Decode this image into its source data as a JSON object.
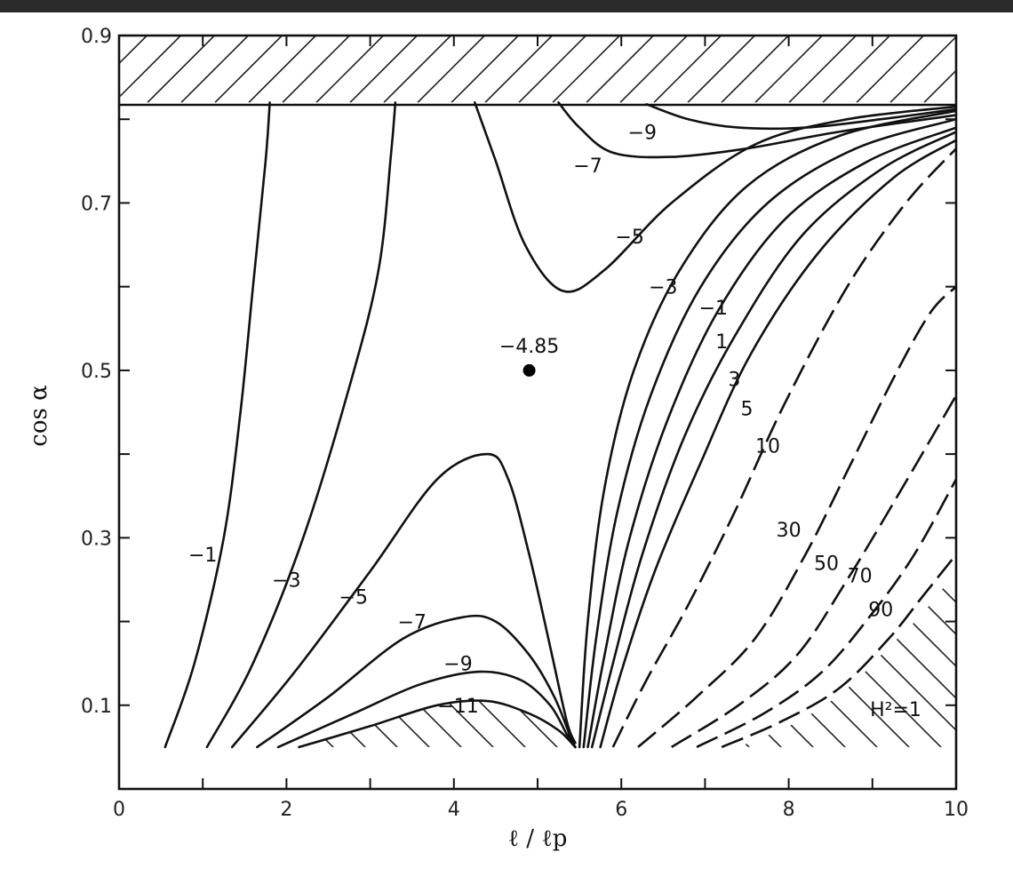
{
  "chart_data": {
    "type": "contour",
    "xlabel": "ℓ / ℓp",
    "ylabel": "cos α",
    "xlim": [
      0,
      10
    ],
    "ylim": [
      0,
      0.9
    ],
    "x_ticks": [
      "0",
      "2",
      "4",
      "6",
      "8",
      "10"
    ],
    "y_ticks": [
      "0.1",
      "0.3",
      "0.5",
      "0.7",
      "0.9"
    ],
    "point": {
      "label": "−4.85",
      "x": 4.9,
      "y": 0.5
    },
    "excluded_region_top": {
      "y_from": 0.82,
      "y_to": 0.9
    },
    "excluded_region_label": "H²=1",
    "contour_labels": [
      {
        "text": "−1",
        "x": 1.0,
        "y": 0.28
      },
      {
        "text": "−3",
        "x": 2.0,
        "y": 0.25
      },
      {
        "text": "−5",
        "x": 2.8,
        "y": 0.23
      },
      {
        "text": "−7",
        "x": 3.5,
        "y": 0.2
      },
      {
        "text": "−9",
        "x": 4.05,
        "y": 0.15
      },
      {
        "text": "−11",
        "x": 4.05,
        "y": 0.1
      },
      {
        "text": "−9",
        "x": 6.25,
        "y": 0.785
      },
      {
        "text": "−7",
        "x": 5.6,
        "y": 0.745
      },
      {
        "text": "−5",
        "x": 6.1,
        "y": 0.66
      },
      {
        "text": "−3",
        "x": 6.5,
        "y": 0.6
      },
      {
        "text": "−1",
        "x": 7.1,
        "y": 0.575
      },
      {
        "text": "1",
        "x": 7.2,
        "y": 0.535
      },
      {
        "text": "3",
        "x": 7.35,
        "y": 0.49
      },
      {
        "text": "5",
        "x": 7.5,
        "y": 0.455
      },
      {
        "text": "10",
        "x": 7.75,
        "y": 0.41
      },
      {
        "text": "30",
        "x": 8.0,
        "y": 0.31
      },
      {
        "text": "50",
        "x": 8.45,
        "y": 0.27
      },
      {
        "text": "70",
        "x": 8.85,
        "y": 0.255
      },
      {
        "text": "90",
        "x": 9.1,
        "y": 0.215
      }
    ],
    "contours": [
      {
        "level": -1,
        "style": "solid",
        "points": [
          [
            0.55,
            0.05
          ],
          [
            0.9,
            0.15
          ],
          [
            1.25,
            0.3
          ],
          [
            1.45,
            0.45
          ],
          [
            1.6,
            0.6
          ],
          [
            1.75,
            0.75
          ],
          [
            1.8,
            0.82
          ]
        ]
      },
      {
        "level": -3,
        "style": "solid",
        "points": [
          [
            1.05,
            0.05
          ],
          [
            1.6,
            0.15
          ],
          [
            2.2,
            0.3
          ],
          [
            2.75,
            0.48
          ],
          [
            3.1,
            0.62
          ],
          [
            3.25,
            0.76
          ],
          [
            3.3,
            0.82
          ]
        ]
      },
      {
        "level": -5,
        "style": "solid",
        "points": [
          [
            1.35,
            0.05
          ],
          [
            2.1,
            0.14
          ],
          [
            3.0,
            0.26
          ],
          [
            3.8,
            0.37
          ],
          [
            4.4,
            0.4
          ],
          [
            4.65,
            0.37
          ],
          [
            4.9,
            0.28
          ],
          [
            5.15,
            0.17
          ],
          [
            5.35,
            0.08
          ],
          [
            5.45,
            0.055
          ]
        ]
      },
      {
        "level": -7,
        "style": "solid",
        "points": [
          [
            1.65,
            0.05
          ],
          [
            2.5,
            0.11
          ],
          [
            3.4,
            0.18
          ],
          [
            4.1,
            0.205
          ],
          [
            4.5,
            0.2
          ],
          [
            4.9,
            0.16
          ],
          [
            5.2,
            0.11
          ],
          [
            5.4,
            0.06
          ],
          [
            5.45,
            0.05
          ]
        ]
      },
      {
        "level": -9,
        "style": "solid",
        "points": [
          [
            1.9,
            0.05
          ],
          [
            2.8,
            0.09
          ],
          [
            3.6,
            0.125
          ],
          [
            4.3,
            0.14
          ],
          [
            4.8,
            0.13
          ],
          [
            5.15,
            0.1
          ],
          [
            5.35,
            0.065
          ],
          [
            5.45,
            0.05
          ]
        ]
      },
      {
        "level": -11,
        "style": "solid",
        "points": [
          [
            2.15,
            0.05
          ],
          [
            3.0,
            0.075
          ],
          [
            3.8,
            0.1
          ],
          [
            4.4,
            0.105
          ],
          [
            4.9,
            0.09
          ],
          [
            5.25,
            0.07
          ],
          [
            5.45,
            0.05
          ]
        ]
      },
      {
        "level": -5,
        "style": "solid",
        "points": [
          [
            4.25,
            0.82
          ],
          [
            4.5,
            0.75
          ],
          [
            4.85,
            0.65
          ],
          [
            5.3,
            0.595
          ],
          [
            5.8,
            0.62
          ],
          [
            6.6,
            0.7
          ],
          [
            7.6,
            0.77
          ],
          [
            8.7,
            0.8
          ],
          [
            10,
            0.815
          ]
        ]
      },
      {
        "level": -7,
        "style": "solid",
        "points": [
          [
            5.25,
            0.82
          ],
          [
            5.5,
            0.79
          ],
          [
            5.9,
            0.76
          ],
          [
            6.6,
            0.755
          ],
          [
            7.5,
            0.765
          ],
          [
            8.6,
            0.785
          ],
          [
            10,
            0.805
          ]
        ]
      },
      {
        "level": -9,
        "style": "solid",
        "points": [
          [
            6.3,
            0.818
          ],
          [
            6.8,
            0.8
          ],
          [
            7.4,
            0.79
          ],
          [
            8.2,
            0.79
          ],
          [
            9.1,
            0.8
          ],
          [
            10,
            0.812
          ]
        ]
      },
      {
        "level": -3,
        "style": "solid",
        "points": [
          [
            5.5,
            0.05
          ],
          [
            5.6,
            0.2
          ],
          [
            5.8,
            0.36
          ],
          [
            6.15,
            0.5
          ],
          [
            6.7,
            0.62
          ],
          [
            7.5,
            0.72
          ],
          [
            8.6,
            0.78
          ],
          [
            10,
            0.81
          ]
        ]
      },
      {
        "level": -1,
        "style": "solid",
        "points": [
          [
            5.55,
            0.05
          ],
          [
            5.7,
            0.18
          ],
          [
            5.95,
            0.33
          ],
          [
            6.35,
            0.47
          ],
          [
            6.95,
            0.6
          ],
          [
            7.75,
            0.7
          ],
          [
            8.8,
            0.765
          ],
          [
            10,
            0.8
          ]
        ]
      },
      {
        "level": 1,
        "style": "solid",
        "points": [
          [
            5.6,
            0.05
          ],
          [
            5.8,
            0.16
          ],
          [
            6.1,
            0.3
          ],
          [
            6.55,
            0.44
          ],
          [
            7.15,
            0.57
          ],
          [
            7.95,
            0.68
          ],
          [
            8.95,
            0.75
          ],
          [
            10,
            0.79
          ]
        ]
      },
      {
        "level": 3,
        "style": "solid",
        "points": [
          [
            5.65,
            0.05
          ],
          [
            5.9,
            0.15
          ],
          [
            6.25,
            0.28
          ],
          [
            6.75,
            0.42
          ],
          [
            7.35,
            0.54
          ],
          [
            8.15,
            0.66
          ],
          [
            9.1,
            0.74
          ],
          [
            10,
            0.785
          ]
        ]
      },
      {
        "level": 5,
        "style": "solid",
        "points": [
          [
            5.75,
            0.05
          ],
          [
            6.0,
            0.14
          ],
          [
            6.4,
            0.26
          ],
          [
            6.95,
            0.39
          ],
          [
            7.55,
            0.52
          ],
          [
            8.35,
            0.64
          ],
          [
            9.25,
            0.73
          ],
          [
            10,
            0.775
          ]
        ]
      },
      {
        "level": 10,
        "style": "dashed",
        "points": [
          [
            5.9,
            0.05
          ],
          [
            6.3,
            0.13
          ],
          [
            6.8,
            0.22
          ],
          [
            7.35,
            0.33
          ],
          [
            7.95,
            0.46
          ],
          [
            8.7,
            0.6
          ],
          [
            9.4,
            0.7
          ],
          [
            10,
            0.765
          ]
        ]
      },
      {
        "level": 30,
        "style": "dashed",
        "points": [
          [
            6.2,
            0.05
          ],
          [
            6.9,
            0.11
          ],
          [
            7.6,
            0.18
          ],
          [
            8.2,
            0.28
          ],
          [
            8.75,
            0.39
          ],
          [
            9.3,
            0.5
          ],
          [
            9.7,
            0.57
          ],
          [
            10,
            0.6
          ]
        ]
      },
      {
        "level": 50,
        "style": "dashed",
        "points": [
          [
            6.6,
            0.05
          ],
          [
            7.4,
            0.1
          ],
          [
            8.1,
            0.16
          ],
          [
            8.7,
            0.25
          ],
          [
            9.3,
            0.35
          ],
          [
            10,
            0.47
          ]
        ]
      },
      {
        "level": 70,
        "style": "dashed",
        "points": [
          [
            6.9,
            0.05
          ],
          [
            7.7,
            0.09
          ],
          [
            8.4,
            0.14
          ],
          [
            9.0,
            0.21
          ],
          [
            9.5,
            0.28
          ],
          [
            10,
            0.37
          ]
        ]
      },
      {
        "level": 90,
        "style": "dashed",
        "points": [
          [
            7.2,
            0.05
          ],
          [
            7.9,
            0.08
          ],
          [
            8.6,
            0.12
          ],
          [
            9.2,
            0.18
          ],
          [
            9.6,
            0.23
          ],
          [
            10,
            0.28
          ]
        ]
      }
    ],
    "excluded_region_bottom_middle": [
      [
        2.2,
        0.05
      ],
      [
        3.0,
        0.075
      ],
      [
        3.8,
        0.1
      ],
      [
        4.4,
        0.105
      ],
      [
        4.9,
        0.09
      ],
      [
        5.25,
        0.07
      ],
      [
        5.45,
        0.05
      ]
    ],
    "excluded_region_bottom_right": [
      [
        7.4,
        0.05
      ],
      [
        8.1,
        0.08
      ],
      [
        8.7,
        0.12
      ],
      [
        9.2,
        0.17
      ],
      [
        9.6,
        0.21
      ],
      [
        10,
        0.26
      ]
    ]
  }
}
